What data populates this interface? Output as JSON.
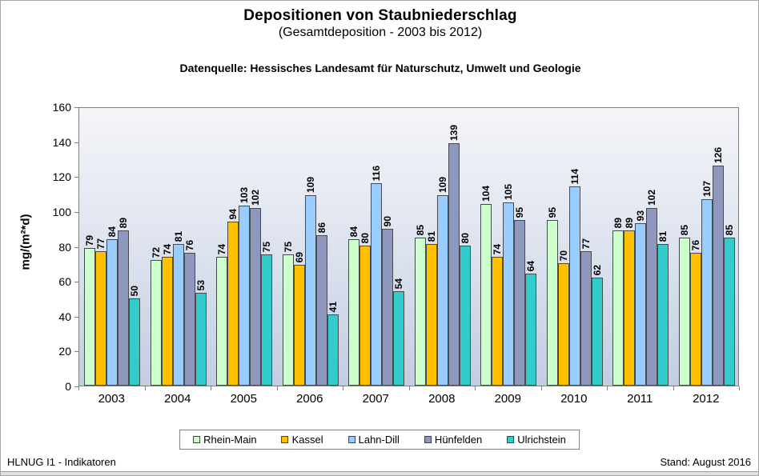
{
  "header": {
    "title": "Depositionen von Staubniederschlag",
    "subtitle": "(Gesamtdeposition - 2003 bis 2012)",
    "source": "Datenquelle: Hessisches Landesamt für Naturschutz, Umwelt und Geologie"
  },
  "chart_data": {
    "type": "bar",
    "categories": [
      "2003",
      "2004",
      "2005",
      "2006",
      "2007",
      "2008",
      "2009",
      "2010",
      "2011",
      "2012"
    ],
    "series": [
      {
        "name": "Rhein-Main",
        "color": "#ccffcc",
        "values": [
          79,
          72,
          74,
          75,
          84,
          85,
          104,
          95,
          89,
          85
        ]
      },
      {
        "name": "Kassel",
        "color": "#ffc000",
        "values": [
          77,
          74,
          94,
          69,
          80,
          81,
          74,
          70,
          89,
          76
        ]
      },
      {
        "name": "Lahn-Dill",
        "color": "#99ccff",
        "values": [
          84,
          81,
          103,
          109,
          116,
          109,
          105,
          114,
          93,
          107
        ]
      },
      {
        "name": "Hünfelden",
        "color": "#8e97be",
        "values": [
          89,
          76,
          102,
          86,
          90,
          139,
          95,
          77,
          102,
          126
        ]
      },
      {
        "name": "Ulrichstein",
        "color": "#33cccc",
        "values": [
          50,
          53,
          75,
          41,
          54,
          80,
          64,
          62,
          81,
          85
        ]
      }
    ],
    "title": "Depositionen von Staubniederschlag",
    "subtitle": "(Gesamtdeposition - 2003 bis 2012)",
    "xlabel": "",
    "ylabel": "mg/(m²*d)",
    "ylim": [
      0,
      160
    ],
    "ytick_step": 20,
    "grid": false,
    "legend_position": "bottom",
    "bar_value_labels": "rotated-90-above-bar"
  },
  "footer": {
    "left": "HLNUG I1 - Indikatoren",
    "right": "Stand: August 2016"
  }
}
